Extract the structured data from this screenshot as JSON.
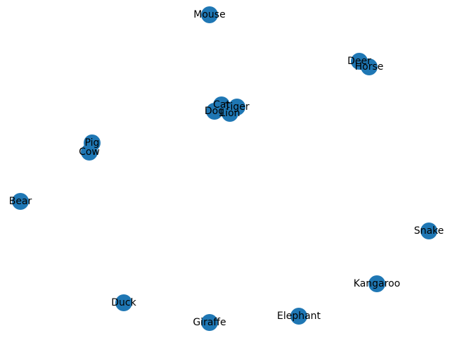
{
  "style": {
    "node_color": "#1f77b4",
    "label_color": "#000000",
    "background": "#ffffff"
  },
  "nodes": [
    {
      "label": "Mouse"
    },
    {
      "label": "Deer"
    },
    {
      "label": "Horse"
    },
    {
      "label": "Cat"
    },
    {
      "label": "Tiger"
    },
    {
      "label": "Dog"
    },
    {
      "label": "Lion"
    },
    {
      "label": "Pig"
    },
    {
      "label": "Cow"
    },
    {
      "label": "Bear"
    },
    {
      "label": "Snake"
    },
    {
      "label": "Kangaroo"
    },
    {
      "label": "Duck"
    },
    {
      "label": "Elephant"
    },
    {
      "label": "Giraffe"
    }
  ]
}
